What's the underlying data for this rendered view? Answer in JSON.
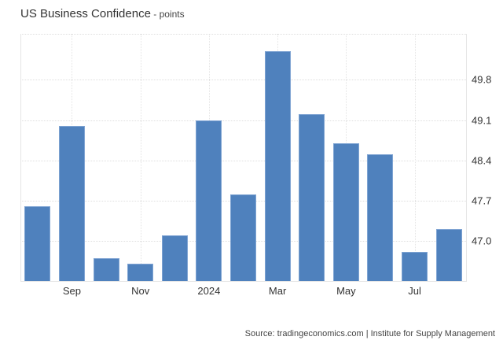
{
  "header": {
    "title": "US Business Confidence",
    "unit": " - points"
  },
  "footer": {
    "source": "Source: tradingeconomics.com | Institute for Supply Management"
  },
  "colors": {
    "bar": "#4f81bd",
    "grid": "#dedede",
    "text": "#333333"
  },
  "chart_data": {
    "type": "bar",
    "title": "US Business Confidence",
    "subtitle": "points",
    "xlabel": "",
    "ylabel": "points",
    "categories": [
      "Aug 2023",
      "Sep 2023",
      "Oct 2023",
      "Nov 2023",
      "Dec 2023",
      "Jan 2024",
      "Feb 2024",
      "Mar 2024",
      "Apr 2024",
      "May 2024",
      "Jun 2024",
      "Jul 2024",
      "Aug 2024"
    ],
    "values": [
      47.6,
      49.0,
      46.7,
      46.6,
      47.1,
      49.1,
      47.8,
      50.3,
      49.2,
      48.7,
      48.5,
      46.8,
      47.2
    ],
    "x_tick_labels": [
      "Sep",
      "Nov",
      "2024",
      "Mar",
      "May",
      "Jul"
    ],
    "y_tick_labels": [
      "47.0",
      "47.7",
      "48.4",
      "49.1",
      "49.8"
    ],
    "y_ticks": [
      47.0,
      47.7,
      48.4,
      49.1,
      49.8
    ],
    "ylim": [
      46.3,
      50.6
    ],
    "y_axis_position": "right",
    "grid": true,
    "legend": "none",
    "source": "tradingeconomics.com | Institute for Supply Management"
  }
}
